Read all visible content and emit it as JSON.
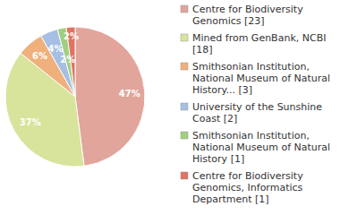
{
  "chart_data": {
    "type": "pie",
    "categories": [
      "Centre for Biodiversity Genomics [23]",
      "Mined from GenBank, NCBI [18]",
      "Smithsonian Institution, National Museum of Natural History... [3]",
      "University of the Sunshine Coast [2]",
      "Smithsonian Institution, National Museum of Natural History [1]",
      "Centre for Biodiversity Genomics, Informatics Department [1]"
    ],
    "values": [
      47,
      37,
      6,
      4,
      2,
      2
    ],
    "value_labels": [
      "47%",
      "37%",
      "6%",
      "4%",
      "2%",
      "2%"
    ],
    "colors": [
      "#e2a59c",
      "#d8e39c",
      "#f0b07c",
      "#a6bfe2",
      "#a0cf80",
      "#e07462"
    ],
    "data_labels": true,
    "legend": "right"
  }
}
